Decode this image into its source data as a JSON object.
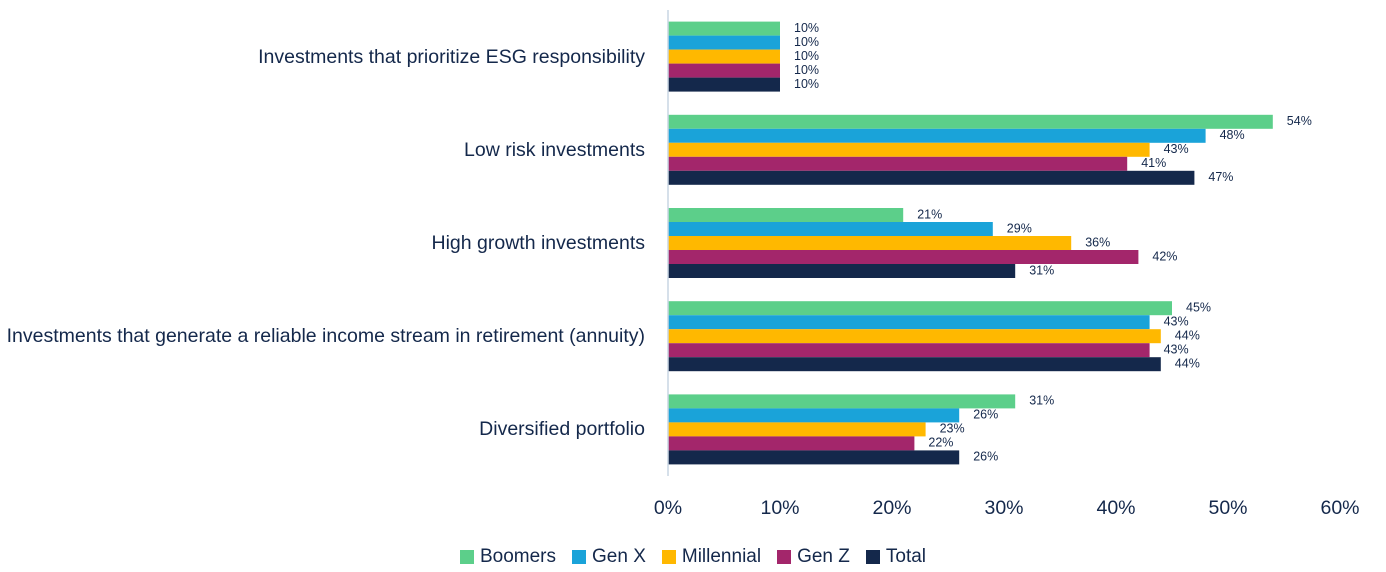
{
  "chart_data": {
    "type": "barh",
    "categories": [
      "Investments that prioritize ESG responsibility",
      "Low risk investments",
      "High growth investments",
      "Investments that generate a reliable income stream in retirement (annuity)",
      "Diversified portfolio"
    ],
    "series": [
      {
        "name": "Boomers",
        "color": "#5ccf8a",
        "values": [
          10,
          54,
          21,
          45,
          31
        ],
        "value_labels": [
          "10%",
          "54%",
          "21%",
          "45%",
          "31%"
        ]
      },
      {
        "name": "Gen X",
        "color": "#1aa3d9",
        "values": [
          10,
          48,
          29,
          43,
          26
        ],
        "value_labels": [
          "10%",
          "48%",
          "29%",
          "43%",
          "26%"
        ]
      },
      {
        "name": "Millennial",
        "color": "#ffb800",
        "values": [
          10,
          43,
          36,
          44,
          23
        ],
        "value_labels": [
          "10%",
          "43%",
          "36%",
          "44%",
          "23%"
        ]
      },
      {
        "name": "Gen Z",
        "color": "#a3266b",
        "values": [
          10,
          41,
          42,
          43,
          22
        ],
        "value_labels": [
          "10%",
          "41%",
          "42%",
          "43%",
          "22%"
        ]
      },
      {
        "name": "Total",
        "color": "#14284b",
        "values": [
          10,
          47,
          31,
          44,
          26
        ],
        "value_labels": [
          "10%",
          "47%",
          "31%",
          "44%",
          "26%"
        ]
      }
    ],
    "xlim": [
      0,
      60
    ],
    "xticks": [
      {
        "value": 0,
        "label": "0%"
      },
      {
        "value": 10,
        "label": "10%"
      },
      {
        "value": 20,
        "label": "20%"
      },
      {
        "value": 30,
        "label": "30%"
      },
      {
        "value": 40,
        "label": "40%"
      },
      {
        "value": 50,
        "label": "50%"
      },
      {
        "value": 60,
        "label": "60%"
      }
    ],
    "legend": "bottom"
  }
}
